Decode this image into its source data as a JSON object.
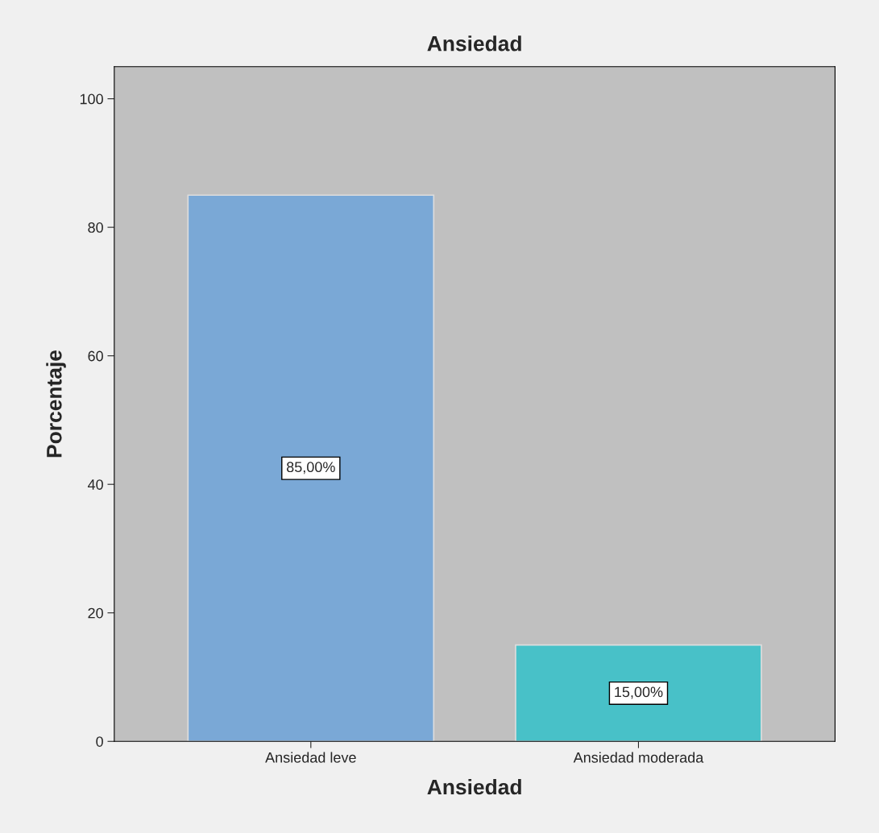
{
  "chart_data": {
    "type": "bar",
    "title": "Ansiedad",
    "xlabel": "Ansiedad",
    "ylabel": "Porcentaje",
    "categories": [
      "Ansiedad leve",
      "Ansiedad moderada"
    ],
    "values": [
      85,
      15
    ],
    "colors": [
      "#7aa8d6",
      "#48c1c8"
    ],
    "value_labels": [
      "85,00%",
      "15,00%"
    ],
    "ylim": [
      0,
      105
    ],
    "yticks": [
      0,
      20,
      40,
      60,
      80,
      100
    ],
    "grid": false,
    "legend": false
  }
}
